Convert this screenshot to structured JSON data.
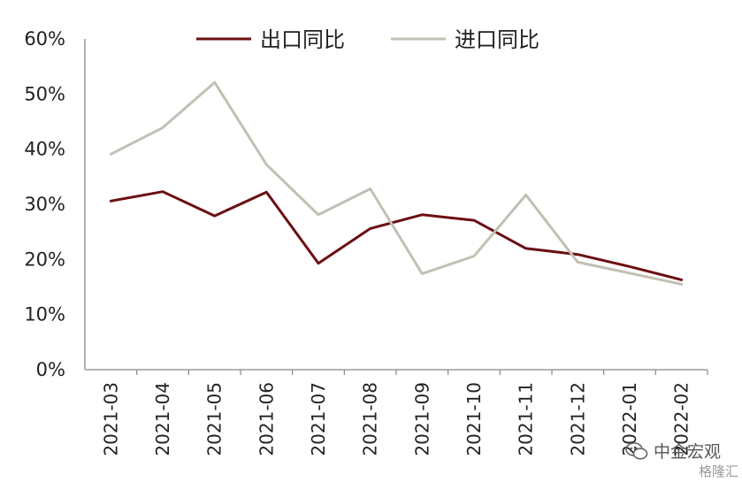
{
  "chart_data": {
    "type": "line",
    "categories": [
      "2021-03",
      "2021-04",
      "2021-05",
      "2021-06",
      "2021-07",
      "2021-08",
      "2021-09",
      "2021-10",
      "2021-11",
      "2021-12",
      "2022-01",
      "2022-02"
    ],
    "series": [
      {
        "name": "出口同比",
        "color": "#6b0f12",
        "values": [
          30.6,
          32.3,
          27.9,
          32.2,
          19.3,
          25.6,
          28.1,
          27.1,
          22.0,
          20.9,
          18.7,
          16.3
        ]
      },
      {
        "name": "进口同比",
        "color": "#c2c0b4",
        "values": [
          39.1,
          43.9,
          52.1,
          37.2,
          28.1,
          32.8,
          17.4,
          20.6,
          31.7,
          19.5,
          17.5,
          15.5
        ]
      }
    ],
    "yticks": [
      "0%",
      "10%",
      "20%",
      "30%",
      "40%",
      "50%",
      "60%"
    ],
    "ylim": [
      0,
      60
    ],
    "legend_position": "top"
  },
  "watermark": {
    "text": "中金宏观",
    "sub": "格隆汇"
  }
}
